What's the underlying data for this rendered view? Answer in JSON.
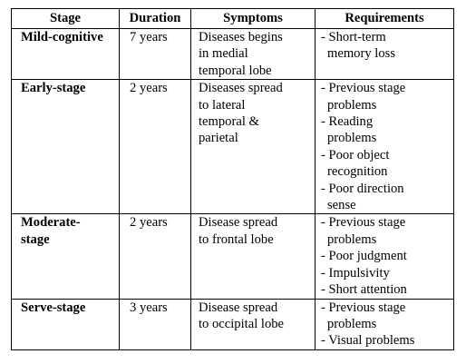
{
  "headers": [
    "Stage",
    "Duration",
    "Symptoms",
    "Requirements"
  ],
  "rows": [
    {
      "stage": [
        "Mild-cognitive"
      ],
      "duration": "7 years",
      "symptoms": [
        "Diseases begins",
        "in medial",
        "temporal lobe"
      ],
      "requirements": [
        [
          "- Short-term",
          "memory loss"
        ]
      ]
    },
    {
      "stage": [
        "Early-stage"
      ],
      "duration": "2 years",
      "symptoms": [
        "Diseases spread",
        "to lateral",
        "temporal &",
        "parietal"
      ],
      "requirements": [
        [
          "- Previous stage",
          "problems"
        ],
        [
          "- Reading",
          "problems"
        ],
        [
          "- Poor object",
          "recognition"
        ],
        [
          "- Poor direction",
          "sense"
        ]
      ]
    },
    {
      "stage": [
        "Moderate-",
        "stage"
      ],
      "duration": "2 years",
      "symptoms": [
        "Disease spread",
        "to frontal lobe"
      ],
      "requirements": [
        [
          "- Previous stage",
          "problems"
        ],
        [
          "- Poor judgment"
        ],
        [
          "- Impulsivity"
        ],
        [
          "- Short attention"
        ]
      ]
    },
    {
      "stage": [
        "Serve-stage"
      ],
      "duration": "3 years",
      "symptoms": [
        "Disease spread",
        "to occipital lobe"
      ],
      "requirements": [
        [
          "- Previous stage",
          "problems"
        ],
        [
          "- Visual problems"
        ]
      ]
    }
  ]
}
